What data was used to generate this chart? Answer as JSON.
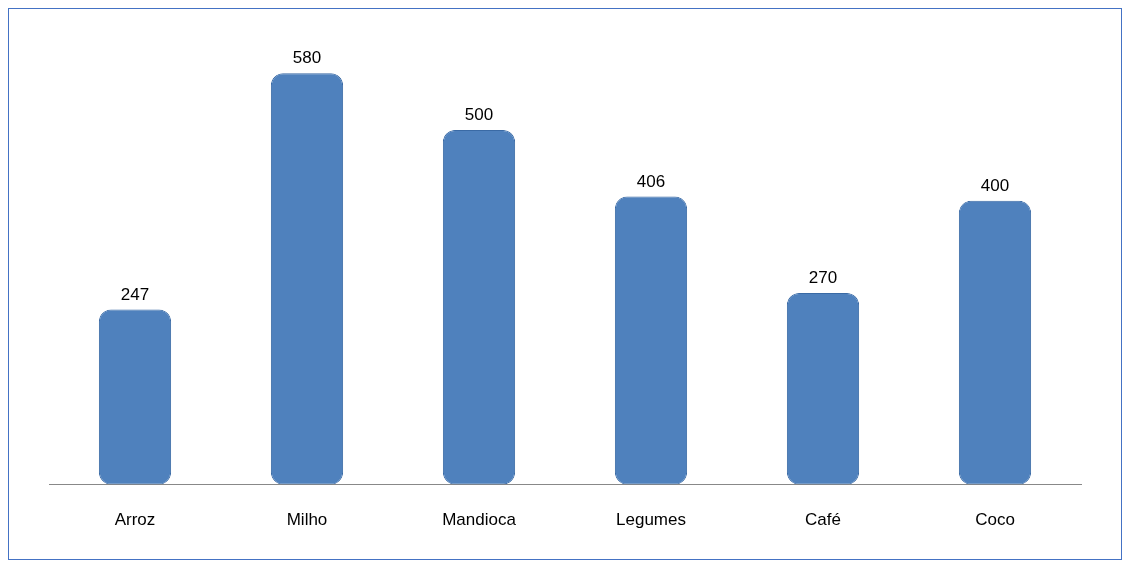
{
  "chart_data": {
    "type": "bar",
    "categories": [
      "Arroz",
      "Milho",
      "Mandioca",
      "Legumes",
      "Café",
      "Coco"
    ],
    "values": [
      247,
      580,
      500,
      406,
      270,
      400
    ],
    "color": "#4f81bd",
    "data_labels": true,
    "grid": false,
    "legend": false
  }
}
